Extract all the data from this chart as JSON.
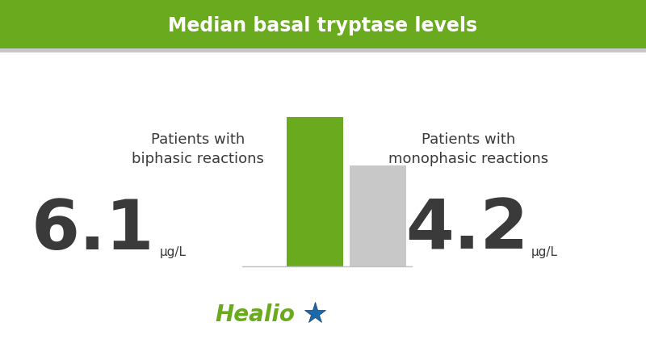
{
  "title": "Median basal tryptase levels",
  "title_bg_color": "#6aaa1e",
  "title_text_color": "#ffffff",
  "bg_color": "#ffffff",
  "bar1_value": 6.1,
  "bar2_value": 4.2,
  "bar1_color": "#6aaa1e",
  "bar2_color": "#c8c8c8",
  "bar1_label": "Patients with\nbiphasic reactions",
  "bar2_label": "Patients with\nmonophasic reactions",
  "bar1_number": "6.1",
  "bar2_number": "4.2",
  "unit": "μg/L",
  "label_color": "#3a3a3a",
  "number_color": "#3a3a3a",
  "healio_text_color": "#6aaa1e",
  "healio_star_blue": "#1a6aaa",
  "healio_star_navy": "#1a3a6a",
  "baseline_color": "#c0c0c0",
  "title_strip_color": "#c8c8c8"
}
